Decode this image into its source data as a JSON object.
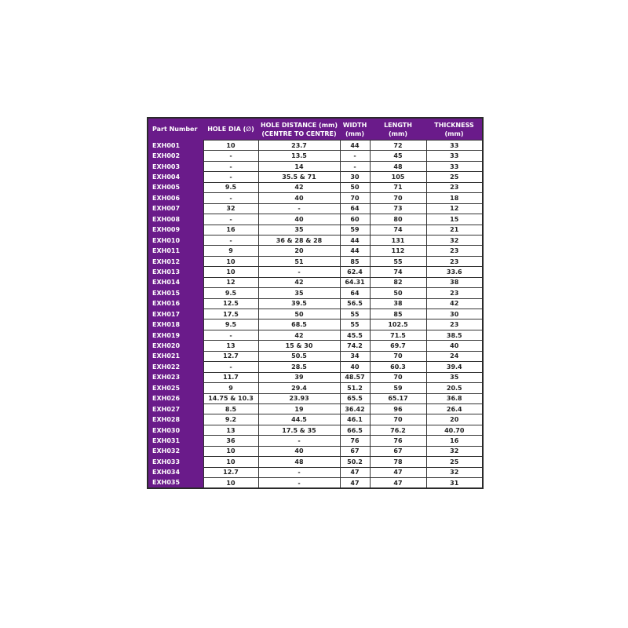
{
  "headers": [
    "Part Number",
    "HOLE DIA (∅)",
    "HOLE DISTANCE (mm)\n(CENTRE TO CENTRE)",
    "WIDTH\n(mm)",
    "LENGTH\n(mm)",
    "THICKNESS\n(mm)"
  ],
  "header_lines": [
    [
      "Part Number"
    ],
    [
      "HOLE DIA (∅)"
    ],
    [
      "HOLE DISTANCE (mm)",
      "(CENTRE TO CENTRE)"
    ],
    [
      "WIDTH",
      "(mm)"
    ],
    [
      "LENGTH",
      "(mm)"
    ],
    [
      "THICKNESS",
      "(mm)"
    ]
  ],
  "colors": {
    "header_bg": "#6a1b8a",
    "header_text": "#ffffff"
  },
  "rows": [
    [
      "EXH001",
      "10",
      "23.7",
      "44",
      "72",
      "33"
    ],
    [
      "EXH002",
      "-",
      "13.5",
      "-",
      "45",
      "33"
    ],
    [
      "EXH003",
      "-",
      "14",
      "-",
      "48",
      "33"
    ],
    [
      "EXH004",
      "-",
      "35.5 & 71",
      "30",
      "105",
      "25"
    ],
    [
      "EXH005",
      "9.5",
      "42",
      "50",
      "71",
      "23"
    ],
    [
      "EXH006",
      "-",
      "40",
      "70",
      "70",
      "18"
    ],
    [
      "EXH007",
      "32",
      "-",
      "64",
      "73",
      "12"
    ],
    [
      "EXH008",
      "-",
      "40",
      "60",
      "80",
      "15"
    ],
    [
      "EXH009",
      "16",
      "35",
      "59",
      "74",
      "21"
    ],
    [
      "EXH010",
      "-",
      "36 & 28 & 28",
      "44",
      "131",
      "32"
    ],
    [
      "EXH011",
      "9",
      "20",
      "44",
      "112",
      "23"
    ],
    [
      "EXH012",
      "10",
      "51",
      "85",
      "55",
      "23"
    ],
    [
      "EXH013",
      "10",
      "-",
      "62.4",
      "74",
      "33.6"
    ],
    [
      "EXH014",
      "12",
      "42",
      "64.31",
      "82",
      "38"
    ],
    [
      "EXH015",
      "9.5",
      "35",
      "64",
      "50",
      "23"
    ],
    [
      "EXH016",
      "12.5",
      "39.5",
      "56.5",
      "38",
      "42"
    ],
    [
      "EXH017",
      "17.5",
      "50",
      "55",
      "85",
      "30"
    ],
    [
      "EXH018",
      "9.5",
      "68.5",
      "55",
      "102.5",
      "23"
    ],
    [
      "EXH019",
      "-",
      "42",
      "45.5",
      "71.5",
      "38.5"
    ],
    [
      "EXH020",
      "13",
      "15 & 30",
      "74.2",
      "69.7",
      "40"
    ],
    [
      "EXH021",
      "12.7",
      "50.5",
      "34",
      "70",
      "24"
    ],
    [
      "EXH022",
      "-",
      "28.5",
      "40",
      "60.3",
      "39.4"
    ],
    [
      "EXH023",
      "11.7",
      "39",
      "48.57",
      "70",
      "35"
    ],
    [
      "EXH025",
      "9",
      "29.4",
      "51.2",
      "59",
      "20.5"
    ],
    [
      "EXH026",
      "14.75 & 10.3",
      "23.93",
      "65.5",
      "65.17",
      "36.8"
    ],
    [
      "EXH027",
      "8.5",
      "19",
      "36.42",
      "96",
      "26.4"
    ],
    [
      "EXH028",
      "9.2",
      "44.5",
      "46.1",
      "70",
      "20"
    ],
    [
      "EXH030",
      "13",
      "17.5 & 35",
      "66.5",
      "76.2",
      "40.70"
    ],
    [
      "EXH031",
      "36",
      "-",
      "76",
      "76",
      "16"
    ],
    [
      "EXH032",
      "10",
      "40",
      "67",
      "67",
      "32"
    ],
    [
      "EXH033",
      "10",
      "48",
      "50.2",
      "78",
      "25"
    ],
    [
      "EXH034",
      "12.7",
      "-",
      "47",
      "47",
      "32"
    ],
    [
      "EXH035",
      "10",
      "-",
      "47",
      "47",
      "31"
    ]
  ]
}
